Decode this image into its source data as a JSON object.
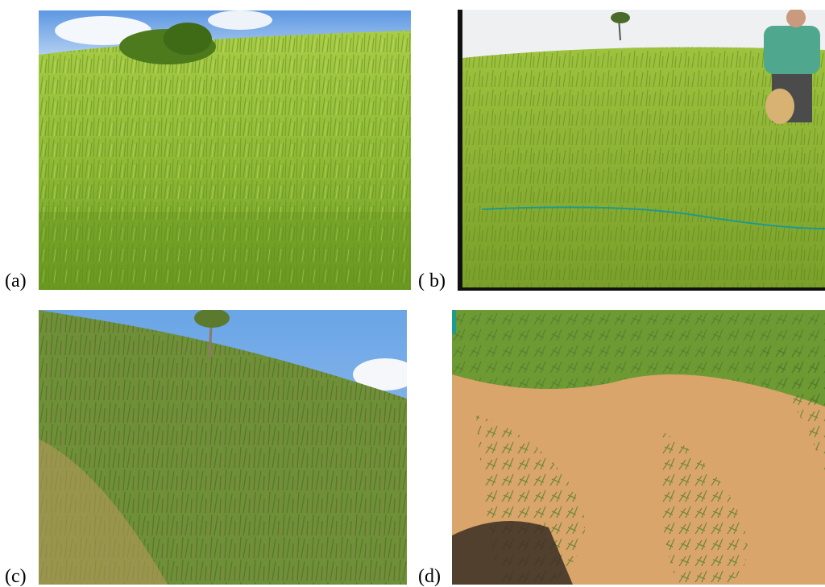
{
  "panels": [
    {
      "id": "a",
      "label": "(a)",
      "subject": "dense green grass pasture on hillside"
    },
    {
      "id": "b",
      "label": "( b)",
      "subject": "grass pasture with measuring line and person"
    },
    {
      "id": "c",
      "label": "(c)",
      "subject": "shrubby degraded pasture hillside"
    },
    {
      "id": "d",
      "label": "(d)",
      "subject": "sparse grass on bare orange soil"
    }
  ],
  "colors": {
    "grass_light": "#9cc43a",
    "grass_dark": "#5f8a1e",
    "sky": "#7fb0e6",
    "soil": "#d9a56a"
  }
}
